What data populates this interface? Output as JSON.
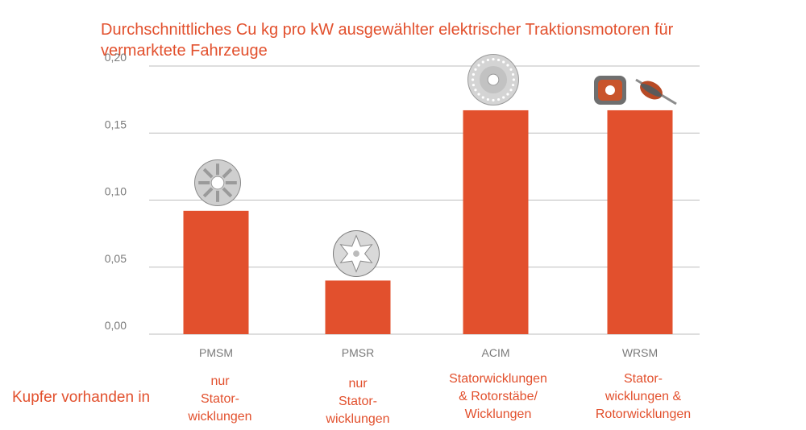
{
  "title_lines": [
    "Durchschnittliches Cu kg pro kW ausgewählter elektrischer Traktionsmotoren für",
    "vermarktete Fahrzeuge"
  ],
  "row_label": "Kupfer vorhanden in",
  "colors": {
    "bar": "#e2502d",
    "text_accent": "#e2502d",
    "grid": "#bdbdbd",
    "tick": "#7a7a7a"
  },
  "chart_data": {
    "type": "bar",
    "title": "Durchschnittliches Cu kg pro kW ausgewählter elektrischer Traktionsmotoren für vermarktete Fahrzeuge",
    "categories": [
      "PMSM",
      "PMSR",
      "ACIM",
      "WRSM"
    ],
    "values": [
      0.092,
      0.04,
      0.167,
      0.167
    ],
    "ylim": [
      0,
      0.2
    ],
    "yticks": [
      "0,00",
      "0,05",
      "0,10",
      "0,15",
      "0,20"
    ],
    "grid": true,
    "xlabel": "",
    "ylabel": ""
  },
  "notes": [
    {
      "lines": [
        "nur",
        "Stator-",
        "wicklungen"
      ]
    },
    {
      "lines": [
        "nur",
        "Stator-",
        "wicklungen"
      ]
    },
    {
      "lines": [
        "Statorwicklungen",
        "& Rotorstäbe/",
        "Wicklungen"
      ]
    },
    {
      "lines": [
        "Stator-",
        "wicklungen &",
        "Rotorwicklungen"
      ]
    }
  ],
  "icons": [
    "stator-ring-icon",
    "rotor-star-icon",
    "induction-rotor-icon",
    "wound-rotor-icon"
  ]
}
